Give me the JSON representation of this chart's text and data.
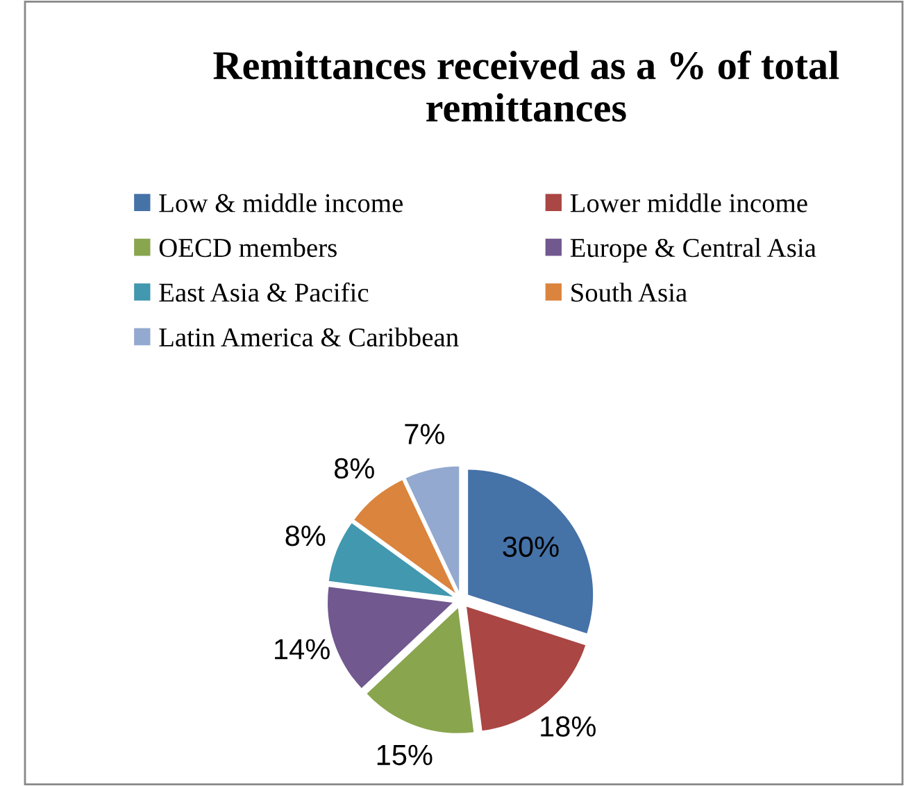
{
  "chart_data": {
    "type": "pie",
    "title": "Remittances received as a % of total remittances",
    "categories": [
      "Low & middle income",
      "Lower middle income",
      "OECD members",
      "Europe & Central Asia",
      "East Asia & Pacific",
      "South Asia",
      "Latin America & Caribbean"
    ],
    "values": [
      30,
      18,
      15,
      14,
      8,
      8,
      7
    ],
    "colors": [
      "#4572a7",
      "#aa4643",
      "#89a54e",
      "#71588f",
      "#4198af",
      "#db843d",
      "#93a9cf"
    ],
    "value_labels": [
      "30%",
      "18%",
      "15%",
      "14%",
      "8%",
      "8%",
      "7%"
    ],
    "legend": "top"
  }
}
